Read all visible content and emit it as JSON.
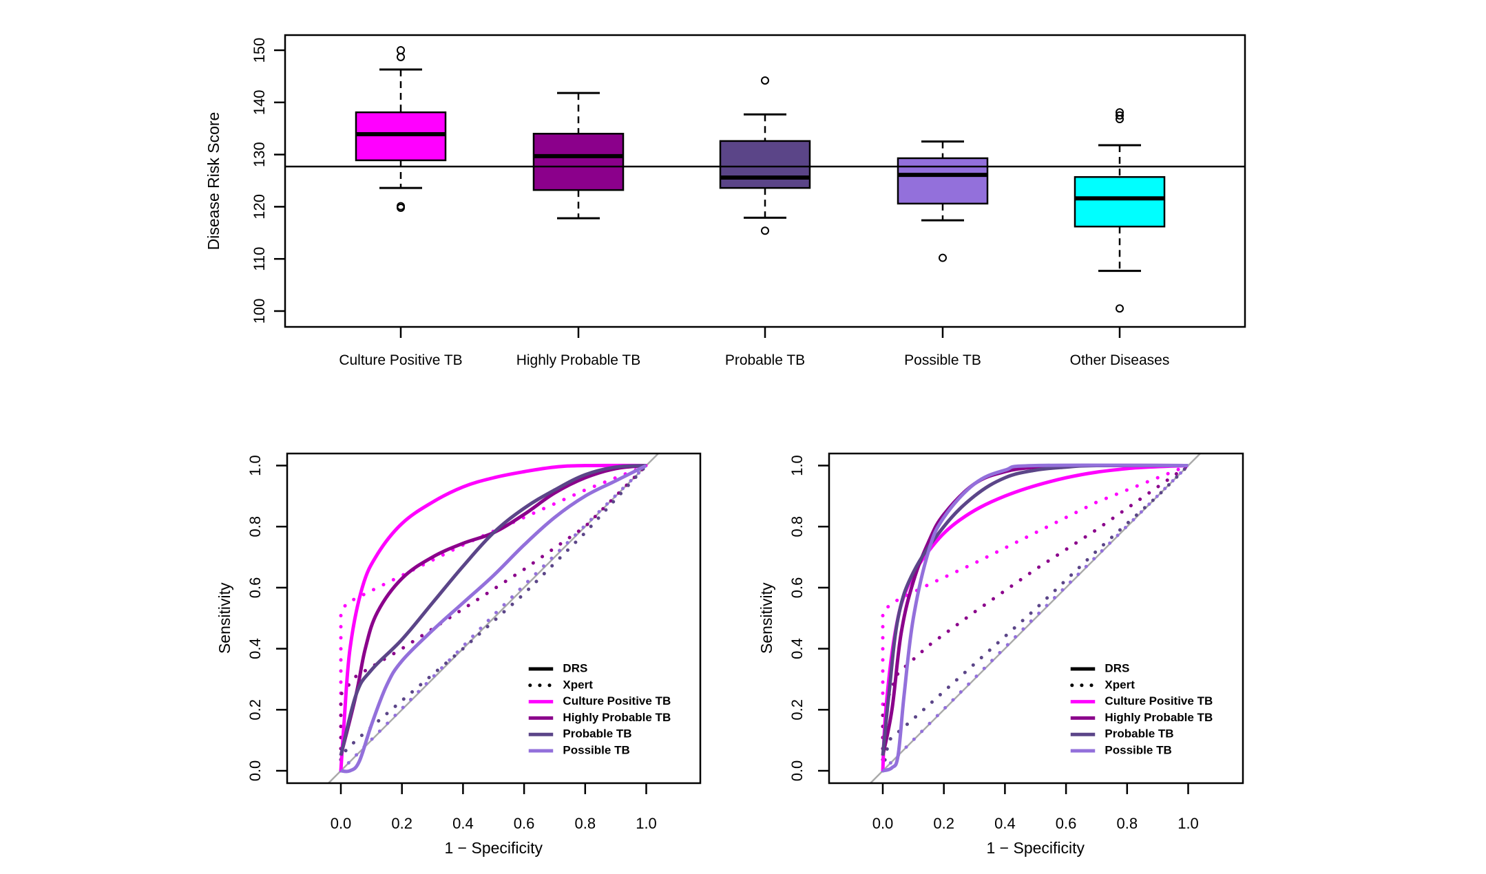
{
  "chart_data": [
    {
      "type": "box",
      "title": "",
      "xlabel": "",
      "ylabel": "Disease Risk Score",
      "ylim": [
        97,
        153
      ],
      "yticks": [
        100,
        110,
        120,
        130,
        140,
        150
      ],
      "reference_line": 127.7,
      "categories": [
        "Culture Positive TB",
        "Highly Probable TB",
        "Probable TB",
        "Possible TB",
        "Other Diseases"
      ],
      "boxes": [
        {
          "name": "Culture Positive TB",
          "color": "#FF00FF",
          "whisker_low": 123.6,
          "q1": 128.9,
          "median": 133.9,
          "q3": 138.1,
          "whisker_high": 146.3,
          "outliers": [
            150.0,
            148.7,
            120.1,
            119.8
          ]
        },
        {
          "name": "Highly Probable TB",
          "color": "#8B008B",
          "whisker_low": 117.8,
          "q1": 123.2,
          "median": 129.7,
          "q3": 134.0,
          "whisker_high": 141.8,
          "outliers": []
        },
        {
          "name": "Probable TB",
          "color": "#5B4588",
          "whisker_low": 117.9,
          "q1": 123.6,
          "median": 125.6,
          "q3": 132.6,
          "whisker_high": 137.7,
          "outliers": [
            144.2,
            115.4
          ]
        },
        {
          "name": "Possible TB",
          "color": "#9370DB",
          "whisker_low": 117.4,
          "q1": 120.6,
          "median": 126.1,
          "q3": 129.3,
          "whisker_high": 132.5,
          "outliers": [
            110.2
          ]
        },
        {
          "name": "Other Diseases",
          "color": "#00FFFF",
          "whisker_low": 107.7,
          "q1": 116.2,
          "median": 121.6,
          "q3": 125.7,
          "whisker_high": 131.8,
          "outliers": [
            138.1,
            137.5,
            136.8,
            100.5
          ]
        }
      ]
    },
    {
      "type": "line",
      "title": "",
      "xlabel": "1 − Specificity",
      "ylabel": "Sensitivity",
      "xlim": [
        -0.18,
        1.18
      ],
      "ylim": [
        -0.04,
        1.04
      ],
      "xticks": [
        "0.0",
        "0.2",
        "0.4",
        "0.6",
        "0.8",
        "1.0"
      ],
      "yticks": [
        "0.0",
        "0.2",
        "0.4",
        "0.6",
        "0.8",
        "1.0"
      ],
      "legend_position": "bottom-right",
      "legend": [
        {
          "label": "DRS",
          "color": "#000000",
          "style": "solid"
        },
        {
          "label": "Xpert",
          "color": "#000000",
          "style": "dotted"
        },
        {
          "label": "Culture Positive TB",
          "color": "#FF00FF",
          "style": "solid"
        },
        {
          "label": "Highly Probable TB",
          "color": "#8B008B",
          "style": "solid"
        },
        {
          "label": "Probable TB",
          "color": "#5B4588",
          "style": "solid"
        },
        {
          "label": "Possible TB",
          "color": "#9370DB",
          "style": "solid"
        }
      ],
      "diagonal": {
        "color": "#AAAAAA",
        "from": [
          -0.05,
          -0.05
        ],
        "to": [
          1.05,
          1.05
        ]
      },
      "series": [
        {
          "name": "DRS Culture Positive TB",
          "color": "#FF00FF",
          "style": "solid",
          "x": [
            0,
            0.01,
            0.03,
            0.07,
            0.12,
            0.2,
            0.3,
            0.4,
            0.5,
            0.6,
            0.7,
            0.8,
            1.0
          ],
          "y": [
            0,
            0.15,
            0.4,
            0.6,
            0.71,
            0.81,
            0.88,
            0.93,
            0.96,
            0.98,
            0.995,
            1.0,
            1.0
          ]
        },
        {
          "name": "DRS Highly Probable TB",
          "color": "#8B008B",
          "style": "solid",
          "x": [
            0,
            0.05,
            0.08,
            0.12,
            0.2,
            0.3,
            0.4,
            0.5,
            0.6,
            0.7,
            0.8,
            0.9,
            1.0
          ],
          "y": [
            0.05,
            0.25,
            0.4,
            0.52,
            0.63,
            0.7,
            0.745,
            0.78,
            0.84,
            0.91,
            0.96,
            0.99,
            1.0
          ]
        },
        {
          "name": "DRS Probable TB",
          "color": "#5B4588",
          "style": "solid",
          "x": [
            0,
            0.05,
            0.1,
            0.2,
            0.3,
            0.4,
            0.5,
            0.6,
            0.7,
            0.8,
            0.9,
            1.0
          ],
          "y": [
            0.05,
            0.25,
            0.33,
            0.43,
            0.55,
            0.67,
            0.78,
            0.86,
            0.92,
            0.97,
            0.995,
            1.0
          ]
        },
        {
          "name": "DRS Possible TB",
          "color": "#9370DB",
          "style": "solid",
          "x": [
            0,
            0.03,
            0.06,
            0.1,
            0.15,
            0.2,
            0.3,
            0.4,
            0.5,
            0.6,
            0.7,
            0.8,
            0.9,
            1.0
          ],
          "y": [
            0,
            0,
            0.03,
            0.15,
            0.28,
            0.36,
            0.46,
            0.55,
            0.64,
            0.74,
            0.83,
            0.9,
            0.95,
            1.0
          ]
        },
        {
          "name": "Xpert Culture Positive TB",
          "color": "#FF00FF",
          "style": "dotted",
          "x": [
            0,
            0,
            0.02,
            0.1,
            0.2,
            0.4,
            0.6,
            0.8,
            1.0
          ],
          "y": [
            0,
            0.52,
            0.55,
            0.59,
            0.64,
            0.74,
            0.83,
            0.92,
            1.0
          ]
        },
        {
          "name": "Xpert Highly Probable TB",
          "color": "#8B008B",
          "style": "dotted",
          "x": [
            0,
            0,
            0.05,
            0.2,
            0.4,
            0.6,
            0.8,
            1.0
          ],
          "y": [
            0,
            0.25,
            0.31,
            0.4,
            0.53,
            0.66,
            0.8,
            1.0
          ]
        },
        {
          "name": "Xpert Probable TB",
          "color": "#5B4588",
          "style": "dotted",
          "x": [
            0,
            0,
            0.05,
            0.2,
            0.4,
            0.6,
            0.8,
            1.0
          ],
          "y": [
            0,
            0.05,
            0.1,
            0.23,
            0.4,
            0.58,
            0.78,
            1.0
          ]
        },
        {
          "name": "Xpert Possible TB",
          "color": "#9370DB",
          "style": "dotted",
          "x": [
            0,
            0.5,
            1.0
          ],
          "y": [
            0,
            0.51,
            1.0
          ]
        }
      ]
    },
    {
      "type": "line",
      "title": "",
      "xlabel": "1 − Specificity",
      "ylabel": "Sensitivity",
      "xlim": [
        -0.18,
        1.18
      ],
      "ylim": [
        -0.04,
        1.04
      ],
      "xticks": [
        "0.0",
        "0.2",
        "0.4",
        "0.6",
        "0.8",
        "1.0"
      ],
      "yticks": [
        "0.0",
        "0.2",
        "0.4",
        "0.6",
        "0.8",
        "1.0"
      ],
      "legend_position": "bottom-right",
      "legend": [
        {
          "label": "DRS",
          "color": "#000000",
          "style": "solid"
        },
        {
          "label": "Xpert",
          "color": "#000000",
          "style": "dotted"
        },
        {
          "label": "Culture Positive TB",
          "color": "#FF00FF",
          "style": "solid"
        },
        {
          "label": "Highly Probable TB",
          "color": "#8B008B",
          "style": "solid"
        },
        {
          "label": "Probable TB",
          "color": "#5B4588",
          "style": "solid"
        },
        {
          "label": "Possible TB",
          "color": "#9370DB",
          "style": "solid"
        }
      ],
      "diagonal": {
        "color": "#AAAAAA",
        "from": [
          -0.05,
          -0.05
        ],
        "to": [
          1.05,
          1.05
        ]
      },
      "series": [
        {
          "name": "DRS Culture Positive TB",
          "color": "#FF00FF",
          "style": "solid",
          "x": [
            0,
            0.01,
            0.04,
            0.08,
            0.15,
            0.25,
            0.4,
            0.6,
            0.8,
            1.0
          ],
          "y": [
            0,
            0.2,
            0.45,
            0.6,
            0.72,
            0.82,
            0.9,
            0.96,
            0.99,
            1.0
          ]
        },
        {
          "name": "DRS Highly Probable TB",
          "color": "#8B008B",
          "style": "solid",
          "x": [
            0,
            0.03,
            0.06,
            0.1,
            0.15,
            0.2,
            0.3,
            0.4,
            0.5,
            0.6,
            1.0
          ],
          "y": [
            0.05,
            0.2,
            0.45,
            0.62,
            0.75,
            0.84,
            0.94,
            0.98,
            0.995,
            1.0,
            1.0
          ]
        },
        {
          "name": "DRS Probable TB",
          "color": "#5B4588",
          "style": "solid",
          "x": [
            0,
            0.02,
            0.05,
            0.1,
            0.2,
            0.3,
            0.4,
            0.5,
            0.6,
            0.7,
            1.0
          ],
          "y": [
            0.05,
            0.25,
            0.5,
            0.65,
            0.8,
            0.9,
            0.96,
            0.985,
            0.995,
            1.0,
            1.0
          ]
        },
        {
          "name": "DRS Possible TB",
          "color": "#9370DB",
          "style": "solid",
          "x": [
            0,
            0.03,
            0.05,
            0.07,
            0.1,
            0.15,
            0.2,
            0.3,
            0.4,
            0.5,
            1.0
          ],
          "y": [
            0,
            0.01,
            0.05,
            0.25,
            0.5,
            0.72,
            0.83,
            0.94,
            0.985,
            1.0,
            1.0
          ]
        },
        {
          "name": "Xpert Culture Positive TB",
          "color": "#FF00FF",
          "style": "dotted",
          "x": [
            0,
            0,
            0.03,
            0.15,
            0.3,
            0.5,
            0.7,
            0.9,
            1.0
          ],
          "y": [
            0,
            0.52,
            0.55,
            0.61,
            0.68,
            0.78,
            0.88,
            0.96,
            1.0
          ]
        },
        {
          "name": "Xpert Highly Probable TB",
          "color": "#8B008B",
          "style": "dotted",
          "x": [
            0,
            0,
            0.05,
            0.15,
            0.3,
            0.5,
            0.7,
            0.9,
            1.0
          ],
          "y": [
            0,
            0.2,
            0.32,
            0.41,
            0.52,
            0.66,
            0.79,
            0.93,
            1.0
          ]
        },
        {
          "name": "Xpert Probable TB",
          "color": "#5B4588",
          "style": "dotted",
          "x": [
            0,
            0.02,
            0.1,
            0.3,
            0.5,
            0.7,
            0.9,
            1.0
          ],
          "y": [
            0,
            0.1,
            0.17,
            0.35,
            0.53,
            0.72,
            0.9,
            1.0
          ]
        },
        {
          "name": "Xpert Possible TB",
          "color": "#9370DB",
          "style": "dotted",
          "x": [
            0,
            0.5,
            1.0
          ],
          "y": [
            0,
            0.505,
            1.0
          ]
        }
      ]
    }
  ]
}
